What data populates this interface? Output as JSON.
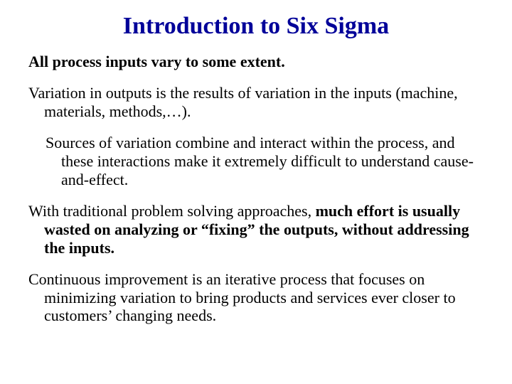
{
  "title_color": "#000099",
  "body_color": "#000000",
  "background": "#ffffff",
  "title_fontsize": 34,
  "body_fontsize": 22,
  "font_family": "Times New Roman",
  "title": "Introduction to Six Sigma",
  "p1": "All process inputs vary to some extent.",
  "p2": "Variation in outputs is the results of variation in the inputs (machine, materials, methods,…).",
  "p3": "Sources of variation combine and interact within the process, and these interactions make it extremely difficult to understand cause-and-effect.",
  "p4_a": "With traditional problem solving approaches, ",
  "p4_b": "much effort is usually wasted on analyzing or “fixing” the outputs, without addressing the inputs.",
  "p5": "Continuous improvement is an iterative process that focuses on minimizing variation to bring products and services ever closer to customers’ changing needs."
}
